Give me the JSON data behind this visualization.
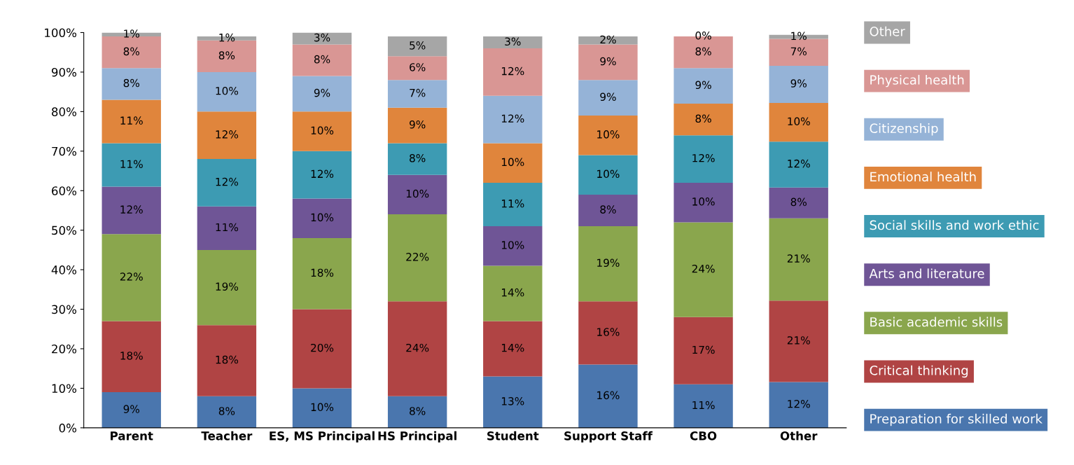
{
  "chart_data": {
    "type": "bar",
    "stacked": true,
    "legend": "right",
    "grid": false,
    "categories": [
      "Parent",
      "Teacher",
      "ES, MS Principal",
      "HS Principal",
      "Student",
      "Support Staff",
      "CBO",
      "Other"
    ],
    "ylim": [
      0,
      100
    ],
    "yticks": [
      {
        "value": 0,
        "label": "0%"
      },
      {
        "value": 10,
        "label": "10%"
      },
      {
        "value": 20,
        "label": "20%"
      },
      {
        "value": 30,
        "label": "30%"
      },
      {
        "value": 40,
        "label": "40%"
      },
      {
        "value": 50,
        "label": "50%"
      },
      {
        "value": 60,
        "label": "60%"
      },
      {
        "value": 70,
        "label": "70%"
      },
      {
        "value": 80,
        "label": "80%"
      },
      {
        "value": 90,
        "label": "90%"
      },
      {
        "value": 100,
        "label": "100%"
      }
    ],
    "series": [
      {
        "name": "Preparation for skilled work",
        "color": "#4a76ae",
        "values": [
          9,
          8,
          10,
          8,
          13,
          16,
          11,
          11.6
        ],
        "value_labels": [
          "9%",
          "8%",
          "10%",
          "8%",
          "13%",
          "16%",
          "11%",
          "12%"
        ]
      },
      {
        "name": "Critical thinking",
        "color": "#b04444",
        "values": [
          18,
          18,
          20,
          24,
          14,
          16,
          17,
          20.6
        ],
        "value_labels": [
          "18%",
          "18%",
          "20%",
          "24%",
          "14%",
          "16%",
          "17%",
          "21%"
        ]
      },
      {
        "name": "Basic academic skills",
        "color": "#8aa64d",
        "values": [
          22,
          19,
          18,
          22,
          14,
          19,
          24,
          20.8
        ],
        "value_labels": [
          "22%",
          "19%",
          "18%",
          "22%",
          "14%",
          "19%",
          "24%",
          "21%"
        ]
      },
      {
        "name": "Arts and literature",
        "color": "#6f5596",
        "values": [
          12,
          11,
          10,
          10,
          10,
          8,
          10,
          7.8
        ],
        "value_labels": [
          "12%",
          "11%",
          "10%",
          "10%",
          "10%",
          "8%",
          "10%",
          "8%"
        ]
      },
      {
        "name": "Social skills and work ethic",
        "color": "#3d9bb3",
        "values": [
          11,
          12,
          12,
          8,
          11,
          10,
          12,
          11.6
        ],
        "value_labels": [
          "11%",
          "12%",
          "12%",
          "8%",
          "11%",
          "10%",
          "12%",
          "12%"
        ]
      },
      {
        "name": "Emotional health",
        "color": "#e0853c",
        "values": [
          11,
          12,
          10,
          9,
          10,
          10,
          8,
          9.8
        ],
        "value_labels": [
          "11%",
          "12%",
          "10%",
          "9%",
          "10%",
          "10%",
          "8%",
          "10%"
        ]
      },
      {
        "name": "Citizenship",
        "color": "#95b3d7",
        "values": [
          8,
          10,
          9,
          7,
          12,
          9,
          9,
          9.4
        ],
        "value_labels": [
          "8%",
          "10%",
          "9%",
          "7%",
          "12%",
          "9%",
          "9%",
          "9%"
        ]
      },
      {
        "name": "Physical health",
        "color": "#d99694",
        "values": [
          8,
          8,
          8,
          6,
          12,
          9,
          8,
          6.8
        ],
        "value_labels": [
          "8%",
          "8%",
          "8%",
          "6%",
          "12%",
          "9%",
          "8%",
          "7%"
        ]
      },
      {
        "name": "Other",
        "color": "#a6a6a6",
        "values": [
          1,
          1,
          3,
          5,
          3,
          2,
          0,
          1
        ],
        "value_labels": [
          "1%",
          "1%",
          "3%",
          "5%",
          "3%",
          "2%",
          "0%",
          "1%"
        ]
      }
    ]
  }
}
